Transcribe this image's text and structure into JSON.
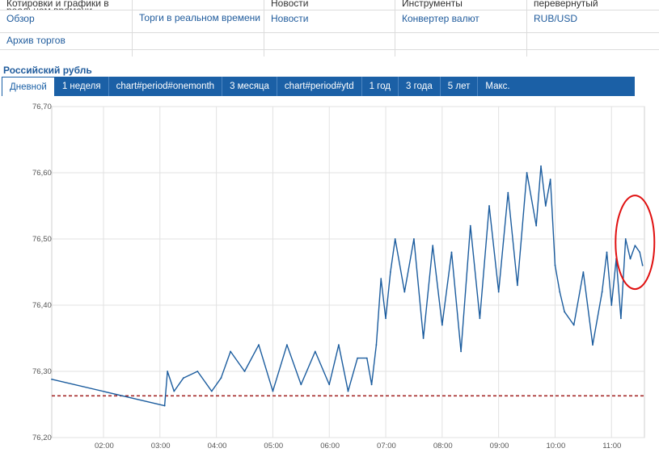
{
  "menu": [
    {
      "header": "Котировки и графики в реальном времени",
      "items": [
        "Обзор",
        "Архив торгов"
      ]
    },
    {
      "header": "",
      "items": [
        "Торги в реальном времени",
        ""
      ]
    },
    {
      "header": "Новости",
      "items": [
        "Новости",
        ""
      ]
    },
    {
      "header": "Инструменты",
      "items": [
        "Конвертер валют",
        ""
      ]
    },
    {
      "header": "перевернутый",
      "items": [
        "RUB/USD",
        ""
      ]
    }
  ],
  "page_title": "Российский рубль",
  "tabs": [
    "Дневной",
    "1 неделя",
    "chart#period#onemonth",
    "3 месяца",
    "chart#period#ytd",
    "1 год",
    "3 года",
    "5 лет",
    "Макс."
  ],
  "active_tab": "Дневной",
  "colors": {
    "accent": "#1b60a6",
    "series": "#1b5c9e",
    "reference": "#a52a2a",
    "highlight": "#e01010"
  },
  "chart_data": {
    "type": "line",
    "ylim": [
      76.2,
      76.7
    ],
    "y_ticks": [
      "76,20",
      "76,30",
      "76,40",
      "76,50",
      "76,60",
      "76,70"
    ],
    "x_ticks": [
      "02:00",
      "03:00",
      "04:00",
      "05:00",
      "06:00",
      "07:00",
      "08:00",
      "09:00",
      "10:00",
      "11:00"
    ],
    "xlim": [
      "01:05",
      "11:35"
    ],
    "grid": true,
    "reference_line": 76.263,
    "highlight": "ellipse around last values",
    "series": [
      {
        "x": [
          "01:05",
          "03:05",
          "03:08",
          "03:15",
          "03:25",
          "03:40",
          "03:55",
          "04:05",
          "04:15",
          "04:30",
          "04:45",
          "05:00",
          "05:15",
          "05:30",
          "05:45",
          "06:00",
          "06:10",
          "06:20",
          "06:30",
          "06:40",
          "06:45",
          "06:50",
          "06:55",
          "07:00",
          "07:05",
          "07:10",
          "07:20",
          "07:30",
          "07:40",
          "07:50",
          "08:00",
          "08:10",
          "08:20",
          "08:30",
          "08:40",
          "08:50",
          "09:00",
          "09:10",
          "09:20",
          "09:30",
          "09:40",
          "09:45",
          "09:50",
          "09:55",
          "10:00",
          "10:05",
          "10:10",
          "10:20",
          "10:30",
          "10:40",
          "10:50",
          "10:55",
          "11:00",
          "11:05",
          "11:10",
          "11:15",
          "11:20",
          "11:25",
          "11:30",
          "11:33"
        ],
        "y": [
          76.288,
          76.248,
          76.3,
          76.27,
          76.29,
          76.3,
          76.27,
          76.29,
          76.33,
          76.3,
          76.34,
          76.27,
          76.34,
          76.28,
          76.33,
          76.28,
          76.34,
          76.27,
          76.32,
          76.32,
          76.28,
          76.34,
          76.44,
          76.38,
          76.45,
          76.5,
          76.42,
          76.5,
          76.35,
          76.49,
          76.37,
          76.48,
          76.33,
          76.52,
          76.38,
          76.55,
          76.42,
          76.57,
          76.43,
          76.6,
          76.52,
          76.61,
          76.55,
          76.59,
          76.46,
          76.42,
          76.39,
          76.37,
          76.45,
          76.34,
          76.42,
          76.48,
          76.4,
          76.47,
          76.38,
          76.5,
          76.47,
          76.49,
          76.48,
          76.46
        ]
      }
    ]
  }
}
